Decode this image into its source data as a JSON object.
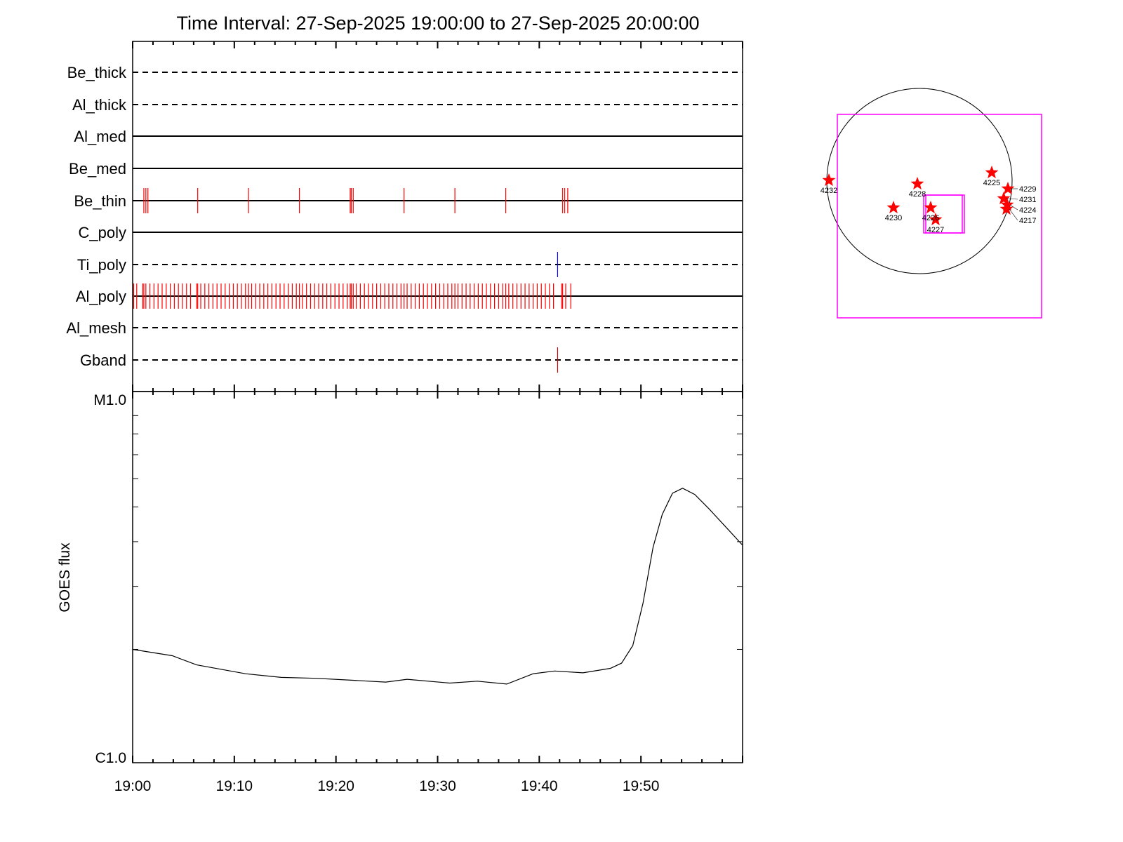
{
  "chart_data": [
    {
      "type": "event-raster",
      "title": "Time Interval: 27-Sep-2025 19:00:00 to 27-Sep-2025 20:00:00",
      "xlim": [
        "19:00:00",
        "20:00:00"
      ],
      "channels": [
        {
          "name": "Be_thick",
          "line": "dashed",
          "events": [],
          "color": "#ff0000"
        },
        {
          "name": "Al_thick",
          "line": "dashed",
          "events": [],
          "color": "#ff0000"
        },
        {
          "name": "Al_med",
          "line": "solid",
          "events": [],
          "color": "#ff0000"
        },
        {
          "name": "Be_med",
          "line": "solid",
          "events": [],
          "color": "#ff0000"
        },
        {
          "name": "Be_thin",
          "line": "solid",
          "color": "#ff0000",
          "events": [
            "19:01:06",
            "19:01:18",
            "19:01:30",
            "19:06:24",
            "19:11:24",
            "19:16:24",
            "19:21:24",
            "19:21:30",
            "19:21:42",
            "19:26:42",
            "19:31:42",
            "19:36:42",
            "19:42:18",
            "19:42:30",
            "19:42:48"
          ]
        },
        {
          "name": "C_poly",
          "line": "solid",
          "events": [],
          "color": "#ff0000"
        },
        {
          "name": "Ti_poly",
          "line": "dashed",
          "color": "#0000ff",
          "events": [
            "19:41:48"
          ]
        },
        {
          "name": "Al_poly",
          "line": "solid",
          "color": "#ff0000",
          "events": [
            "19:00:06",
            "19:00:24",
            "19:01:00",
            "19:01:06",
            "19:01:18",
            "19:01:42",
            "19:02:06",
            "19:02:30",
            "19:02:54",
            "19:03:18",
            "19:03:42",
            "19:04:06",
            "19:04:30",
            "19:04:54",
            "19:05:18",
            "19:05:42",
            "19:06:18",
            "19:06:24",
            "19:06:42",
            "19:07:06",
            "19:07:30",
            "19:07:54",
            "19:08:18",
            "19:08:42",
            "19:09:06",
            "19:09:30",
            "19:09:54",
            "19:10:18",
            "19:10:42",
            "19:11:06",
            "19:11:24",
            "19:11:42",
            "19:12:06",
            "19:12:30",
            "19:12:54",
            "19:13:18",
            "19:13:42",
            "19:14:06",
            "19:14:30",
            "19:14:54",
            "19:15:18",
            "19:15:42",
            "19:16:06",
            "19:16:24",
            "19:16:42",
            "19:17:06",
            "19:17:30",
            "19:17:54",
            "19:18:18",
            "19:18:42",
            "19:19:06",
            "19:19:30",
            "19:19:54",
            "19:20:18",
            "19:20:42",
            "19:21:06",
            "19:21:24",
            "19:21:30",
            "19:21:42",
            "19:22:00",
            "19:22:24",
            "19:22:48",
            "19:23:12",
            "19:23:36",
            "19:24:00",
            "19:24:24",
            "19:24:48",
            "19:25:12",
            "19:25:36",
            "19:26:00",
            "19:26:24",
            "19:26:42",
            "19:27:00",
            "19:27:24",
            "19:27:48",
            "19:28:12",
            "19:28:36",
            "19:29:00",
            "19:29:24",
            "19:29:48",
            "19:30:12",
            "19:30:36",
            "19:31:00",
            "19:31:24",
            "19:31:42",
            "19:32:00",
            "19:32:24",
            "19:32:48",
            "19:33:12",
            "19:33:36",
            "19:34:00",
            "19:34:24",
            "19:34:48",
            "19:35:12",
            "19:35:36",
            "19:36:00",
            "19:36:24",
            "19:36:42",
            "19:37:00",
            "19:37:24",
            "19:37:48",
            "19:38:12",
            "19:38:36",
            "19:39:00",
            "19:39:24",
            "19:39:48",
            "19:40:12",
            "19:40:36",
            "19:41:00",
            "19:41:24",
            "19:42:12",
            "19:42:18",
            "19:42:36",
            "19:43:06"
          ]
        },
        {
          "name": "Al_mesh",
          "line": "dashed",
          "events": [],
          "color": "#ff0000"
        },
        {
          "name": "Gband",
          "line": "dashed",
          "color": "#cc0000",
          "events": [
            "19:41:48"
          ]
        }
      ]
    },
    {
      "type": "line",
      "ylabel": "GOES flux",
      "yscale": "log",
      "ylim": [
        1e-06,
        1e-05
      ],
      "ytick_labels": [
        "C1.0",
        "M1.0"
      ],
      "xlim": [
        "19:00:00",
        "20:00:00"
      ],
      "xtick_labels": [
        "19:00",
        "19:10",
        "19:20",
        "19:30",
        "19:40",
        "19:50"
      ],
      "x": [
        "19:00:00",
        "19:03:54",
        "19:06:18",
        "19:11:06",
        "19:14:36",
        "19:18:00",
        "19:21:30",
        "19:24:54",
        "19:27:00",
        "19:31:12",
        "19:33:54",
        "19:36:48",
        "19:39:24",
        "19:41:30",
        "19:44:18",
        "19:47:00",
        "19:48:06",
        "19:49:12",
        "19:50:12",
        "19:51:12",
        "19:52:06",
        "19:53:06",
        "19:54:06",
        "19:55:18",
        "19:56:42",
        "19:58:24",
        "20:00:00"
      ],
      "y": [
        2e-06,
        1.92e-06,
        1.81e-06,
        1.71e-06,
        1.67e-06,
        1.66e-06,
        1.64e-06,
        1.62e-06,
        1.65e-06,
        1.61e-06,
        1.63e-06,
        1.6e-06,
        1.71e-06,
        1.74e-06,
        1.72e-06,
        1.77e-06,
        1.83e-06,
        2.05e-06,
        2.69e-06,
        3.86e-06,
        4.77e-06,
        5.46e-06,
        5.64e-06,
        5.42e-06,
        4.94e-06,
        4.38e-06,
        3.91e-06
      ],
      "color": "#000000"
    },
    {
      "type": "map",
      "regions": [
        "4232",
        "4228",
        "4225",
        "4230",
        "4226",
        "4227",
        "4229",
        "4231",
        "4224",
        "4217"
      ],
      "marker": "star",
      "marker_color": "#ff0000",
      "box_color": "#ff00ff"
    }
  ]
}
